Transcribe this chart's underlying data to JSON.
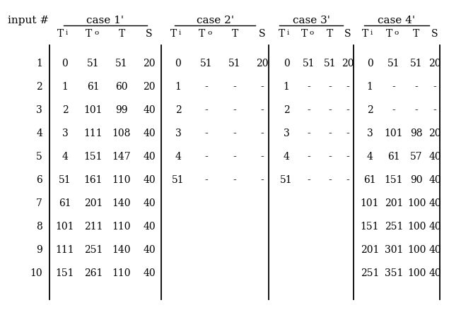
{
  "input_numbers": [
    "1",
    "2",
    "3",
    "4",
    "5",
    "6",
    "7",
    "8",
    "9",
    "10"
  ],
  "case1": [
    [
      "0",
      "51",
      "51",
      "20"
    ],
    [
      "1",
      "61",
      "60",
      "20"
    ],
    [
      "2",
      "101",
      "99",
      "40"
    ],
    [
      "3",
      "111",
      "108",
      "40"
    ],
    [
      "4",
      "151",
      "147",
      "40"
    ],
    [
      "51",
      "161",
      "110",
      "40"
    ],
    [
      "61",
      "201",
      "140",
      "40"
    ],
    [
      "101",
      "211",
      "110",
      "40"
    ],
    [
      "111",
      "251",
      "140",
      "40"
    ],
    [
      "151",
      "261",
      "110",
      "40"
    ]
  ],
  "case2": [
    [
      "0",
      "51",
      "51",
      "20"
    ],
    [
      "1",
      "-",
      "-",
      "-"
    ],
    [
      "2",
      "-",
      "-",
      "-"
    ],
    [
      "3",
      "-",
      "-",
      "-"
    ],
    [
      "4",
      "-",
      "-",
      "-"
    ],
    [
      "51",
      "-",
      "-",
      "-"
    ],
    [
      "",
      "",
      "",
      ""
    ],
    [
      "",
      "",
      "",
      ""
    ],
    [
      "",
      "",
      "",
      ""
    ],
    [
      "",
      "",
      "",
      ""
    ]
  ],
  "case3": [
    [
      "0",
      "51",
      "51",
      "20"
    ],
    [
      "1",
      "-",
      "-",
      "-"
    ],
    [
      "2",
      "-",
      "-",
      "-"
    ],
    [
      "3",
      "-",
      "-",
      "-"
    ],
    [
      "4",
      "-",
      "-",
      "-"
    ],
    [
      "51",
      "-",
      "-",
      "-"
    ],
    [
      "",
      "",
      "",
      ""
    ],
    [
      "",
      "",
      "",
      ""
    ],
    [
      "",
      "",
      "",
      ""
    ],
    [
      "",
      "",
      "",
      ""
    ]
  ],
  "case4": [
    [
      "0",
      "51",
      "51",
      "20"
    ],
    [
      "1",
      "-",
      "-",
      "-"
    ],
    [
      "2",
      "-",
      "-",
      "-"
    ],
    [
      "3",
      "101",
      "98",
      "20"
    ],
    [
      "4",
      "61",
      "57",
      "40"
    ],
    [
      "61",
      "151",
      "90",
      "40"
    ],
    [
      "101",
      "201",
      "100",
      "40"
    ],
    [
      "151",
      "251",
      "100",
      "40"
    ],
    [
      "201",
      "301",
      "100",
      "40"
    ],
    [
      "251",
      "351",
      "100",
      "40"
    ]
  ],
  "bg_color": "#ffffff",
  "text_color": "#000000"
}
